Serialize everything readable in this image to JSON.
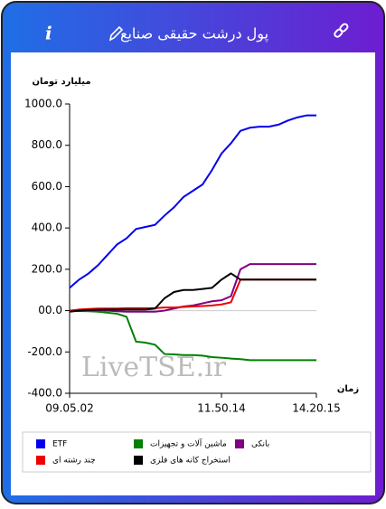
{
  "chart_data": {
    "type": "line",
    "title": "پول درشت حقیقی صنایع",
    "y_label": "میلیارد تومان",
    "x_label": "زمان",
    "watermark": "LiveTSE.ir",
    "categories": [
      "09.05.02",
      null,
      null,
      null,
      null,
      null,
      null,
      null,
      null,
      null,
      null,
      null,
      null,
      null,
      null,
      null,
      "11.50.14",
      null,
      null,
      null,
      null,
      null,
      null,
      null,
      null,
      null,
      "14.20.15"
    ],
    "series": [
      {
        "name": "ETF",
        "color": "#0000ee",
        "values": [
          110,
          150,
          180,
          220,
          270,
          320,
          350,
          395,
          405,
          415,
          460,
          500,
          550,
          580,
          610,
          680,
          760,
          810,
          870,
          885,
          890,
          890,
          900,
          920,
          935,
          945,
          945
        ]
      },
      {
        "name": "ماشین آلات و تجهیزات",
        "color": "#008000",
        "values": [
          0,
          -2,
          -3,
          -5,
          -10,
          -15,
          -30,
          -150,
          -155,
          -165,
          -210,
          -212,
          -215,
          -215,
          -218,
          -225,
          -228,
          -232,
          -235,
          -240,
          -240,
          -240,
          -240,
          -240,
          -240,
          -240,
          -240
        ]
      },
      {
        "name": "بانکی",
        "color": "#800080",
        "values": [
          0,
          2,
          3,
          3,
          0,
          -3,
          -5,
          -5,
          -5,
          -5,
          0,
          10,
          20,
          25,
          35,
          45,
          50,
          70,
          200,
          225,
          225,
          225,
          225,
          225,
          225,
          225,
          225
        ]
      },
      {
        "name": "چند رشته ای",
        "color": "#ee0000",
        "values": [
          0,
          5,
          8,
          10,
          10,
          10,
          12,
          12,
          12,
          12,
          15,
          15,
          18,
          20,
          22,
          25,
          30,
          40,
          150,
          150,
          150,
          150,
          150,
          150,
          150,
          150,
          150
        ]
      },
      {
        "name": "استخراج کانه های فلزی",
        "color": "#000000",
        "values": [
          -5,
          0,
          3,
          4,
          5,
          5,
          5,
          5,
          5,
          10,
          60,
          90,
          100,
          100,
          105,
          110,
          150,
          180,
          150,
          150,
          150,
          150,
          150,
          150,
          150,
          150,
          150
        ]
      }
    ],
    "ylim": [
      -400,
      1000
    ],
    "yticks": [
      {
        "value": -400,
        "label": "-400.0"
      },
      {
        "value": -200,
        "label": "-200.0"
      },
      {
        "value": 0,
        "label": "00.0"
      },
      {
        "value": 200,
        "label": "200.0"
      },
      {
        "value": 400,
        "label": "400.0"
      },
      {
        "value": 600,
        "label": "600.0"
      },
      {
        "value": 800,
        "label": "800.0"
      },
      {
        "value": 1000,
        "label": "1000.0"
      }
    ],
    "zero_line": true
  }
}
